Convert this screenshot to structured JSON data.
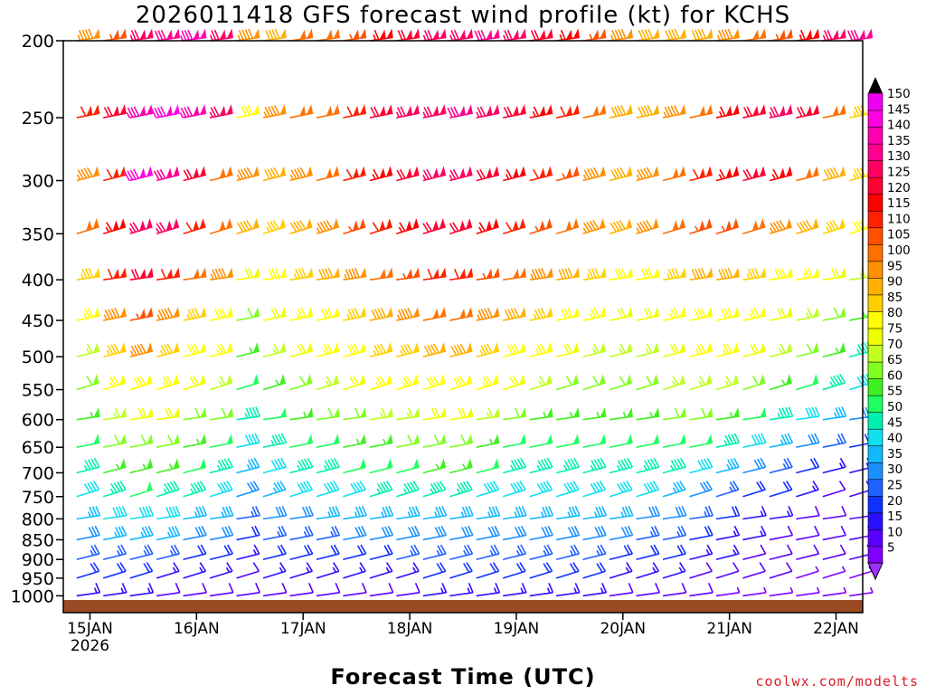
{
  "chart_data": {
    "type": "wind-barb-profile",
    "title": "2026011418 GFS forecast wind profile (kt) for KCHS",
    "xlabel": "Forecast Time (UTC)",
    "ylabel": "",
    "credit": "coolwx.com/modelts",
    "pressure_levels": [
      200,
      250,
      300,
      350,
      400,
      450,
      500,
      550,
      600,
      650,
      700,
      750,
      800,
      850,
      900,
      950,
      1000
    ],
    "y_range": [
      1050,
      200
    ],
    "y_scale": "log-pressure",
    "x_ticks": [
      {
        "label": "15JAN",
        "sublabel": "2026",
        "day": 15
      },
      {
        "label": "16JAN",
        "sublabel": "",
        "day": 16
      },
      {
        "label": "17JAN",
        "sublabel": "",
        "day": 17
      },
      {
        "label": "18JAN",
        "sublabel": "",
        "day": 18
      },
      {
        "label": "19JAN",
        "sublabel": "",
        "day": 19
      },
      {
        "label": "20JAN",
        "sublabel": "",
        "day": 20
      },
      {
        "label": "21JAN",
        "sublabel": "",
        "day": 21
      },
      {
        "label": "22JAN",
        "sublabel": "",
        "day": 22
      }
    ],
    "x_range_days": [
      14.75,
      22.25
    ],
    "time_step_hours": 6,
    "colorbar": {
      "min": 0,
      "max": 150,
      "labels": [
        150,
        145,
        140,
        135,
        130,
        125,
        120,
        115,
        110,
        105,
        100,
        95,
        90,
        85,
        80,
        75,
        70,
        65,
        60,
        55,
        50,
        45,
        40,
        35,
        30,
        25,
        20,
        15,
        10,
        5
      ],
      "colors": [
        "#8000ff",
        "#5a00ff",
        "#2a10ff",
        "#1030ff",
        "#2060ff",
        "#1a90ff",
        "#10b8ff",
        "#10e0f0",
        "#00f0b0",
        "#20ff60",
        "#40f020",
        "#80ff20",
        "#c0ff20",
        "#f0ff00",
        "#ffff00",
        "#ffd000",
        "#ffb000",
        "#ff9000",
        "#ff7000",
        "#ff5000",
        "#ff2000",
        "#ff0000",
        "#ff0030",
        "#ff0060",
        "#ff0090",
        "#ff00b0",
        "#ff00e0",
        "#f000f0"
      ]
    },
    "wind_profiles": [
      {
        "level": 200,
        "speeds": [
          95,
          105,
          125,
          130,
          135,
          125,
          95,
          90,
          100,
          100,
          105,
          115,
          120,
          125,
          125,
          130,
          125,
          120,
          115,
          105,
          95,
          90,
          90,
          90,
          95,
          100,
          105,
          115,
          125,
          130
        ]
      },
      {
        "level": 250,
        "speeds": [
          110,
          120,
          135,
          140,
          135,
          125,
          80,
          95,
          100,
          100,
          110,
          120,
          125,
          125,
          130,
          125,
          120,
          115,
          110,
          100,
          90,
          90,
          95,
          100,
          115,
          120,
          125,
          120,
          100,
          85
        ]
      },
      {
        "level": 300,
        "speeds": [
          95,
          110,
          140,
          130,
          120,
          100,
          95,
          90,
          95,
          100,
          110,
          115,
          120,
          125,
          125,
          120,
          115,
          110,
          105,
          95,
          90,
          95,
          100,
          110,
          115,
          120,
          115,
          100,
          90,
          85
        ]
      },
      {
        "level": 350,
        "speeds": [
          100,
          115,
          125,
          125,
          110,
          100,
          90,
          85,
          90,
          95,
          105,
          110,
          115,
          120,
          120,
          115,
          110,
          105,
          100,
          95,
          90,
          95,
          100,
          105,
          105,
          100,
          95,
          90,
          85,
          80
        ]
      },
      {
        "level": 400,
        "speeds": [
          85,
          110,
          120,
          110,
          100,
          95,
          70,
          80,
          85,
          90,
          95,
          100,
          105,
          110,
          110,
          105,
          100,
          95,
          90,
          85,
          80,
          80,
          85,
          90,
          90,
          85,
          80,
          75,
          70,
          65
        ]
      },
      {
        "level": 450,
        "speeds": [
          75,
          95,
          105,
          95,
          85,
          80,
          60,
          70,
          75,
          80,
          85,
          90,
          95,
          100,
          100,
          95,
          90,
          85,
          80,
          75,
          70,
          70,
          75,
          80,
          80,
          75,
          70,
          65,
          60,
          55
        ]
      },
      {
        "level": 500,
        "speeds": [
          65,
          85,
          95,
          85,
          80,
          75,
          55,
          65,
          70,
          75,
          80,
          85,
          85,
          90,
          90,
          85,
          80,
          75,
          70,
          65,
          65,
          65,
          70,
          75,
          75,
          70,
          65,
          60,
          55,
          45
        ]
      },
      {
        "level": 550,
        "speeds": [
          60,
          75,
          80,
          75,
          70,
          65,
          50,
          55,
          60,
          65,
          70,
          75,
          75,
          80,
          80,
          75,
          70,
          65,
          60,
          60,
          60,
          60,
          65,
          65,
          65,
          60,
          55,
          50,
          45,
          40
        ]
      },
      {
        "level": 600,
        "speeds": [
          55,
          65,
          70,
          70,
          60,
          60,
          45,
          50,
          55,
          60,
          60,
          65,
          65,
          70,
          70,
          65,
          60,
          55,
          55,
          55,
          55,
          55,
          60,
          60,
          55,
          50,
          45,
          40,
          35,
          30
        ]
      },
      {
        "level": 650,
        "speeds": [
          50,
          60,
          60,
          60,
          55,
          50,
          40,
          45,
          50,
          50,
          55,
          55,
          60,
          60,
          60,
          55,
          50,
          50,
          50,
          50,
          50,
          50,
          50,
          50,
          45,
          40,
          35,
          30,
          25,
          20
        ]
      },
      {
        "level": 700,
        "speeds": [
          45,
          55,
          55,
          55,
          50,
          45,
          35,
          40,
          45,
          45,
          50,
          50,
          50,
          55,
          55,
          50,
          45,
          45,
          45,
          45,
          45,
          45,
          45,
          40,
          35,
          30,
          25,
          20,
          15,
          15
        ]
      },
      {
        "level": 750,
        "speeds": [
          40,
          45,
          50,
          45,
          45,
          40,
          30,
          35,
          40,
          40,
          40,
          45,
          45,
          45,
          45,
          40,
          40,
          40,
          40,
          40,
          40,
          40,
          35,
          30,
          25,
          20,
          20,
          15,
          10,
          10
        ]
      },
      {
        "level": 800,
        "speeds": [
          35,
          40,
          40,
          40,
          35,
          35,
          25,
          30,
          30,
          35,
          35,
          35,
          35,
          35,
          35,
          35,
          35,
          35,
          35,
          35,
          35,
          30,
          30,
          25,
          20,
          15,
          15,
          10,
          10,
          10
        ]
      },
      {
        "level": 850,
        "speeds": [
          30,
          35,
          35,
          35,
          30,
          30,
          20,
          25,
          25,
          25,
          30,
          30,
          30,
          30,
          30,
          30,
          30,
          30,
          30,
          30,
          30,
          25,
          25,
          20,
          15,
          15,
          10,
          10,
          10,
          10
        ]
      },
      {
        "level": 900,
        "speeds": [
          25,
          25,
          25,
          25,
          20,
          20,
          15,
          20,
          20,
          20,
          20,
          20,
          25,
          25,
          25,
          25,
          25,
          25,
          25,
          25,
          20,
          20,
          20,
          15,
          15,
          10,
          10,
          10,
          10,
          10
        ]
      },
      {
        "level": 950,
        "speeds": [
          20,
          20,
          20,
          15,
          15,
          15,
          10,
          15,
          15,
          15,
          15,
          15,
          15,
          20,
          20,
          20,
          20,
          20,
          20,
          20,
          15,
          15,
          15,
          10,
          10,
          10,
          10,
          5,
          5,
          5
        ]
      },
      {
        "level": 1000,
        "speeds": [
          15,
          15,
          15,
          10,
          10,
          10,
          10,
          10,
          10,
          10,
          10,
          10,
          10,
          15,
          15,
          15,
          15,
          15,
          15,
          15,
          10,
          10,
          10,
          10,
          5,
          5,
          5,
          5,
          5,
          5
        ]
      }
    ]
  }
}
